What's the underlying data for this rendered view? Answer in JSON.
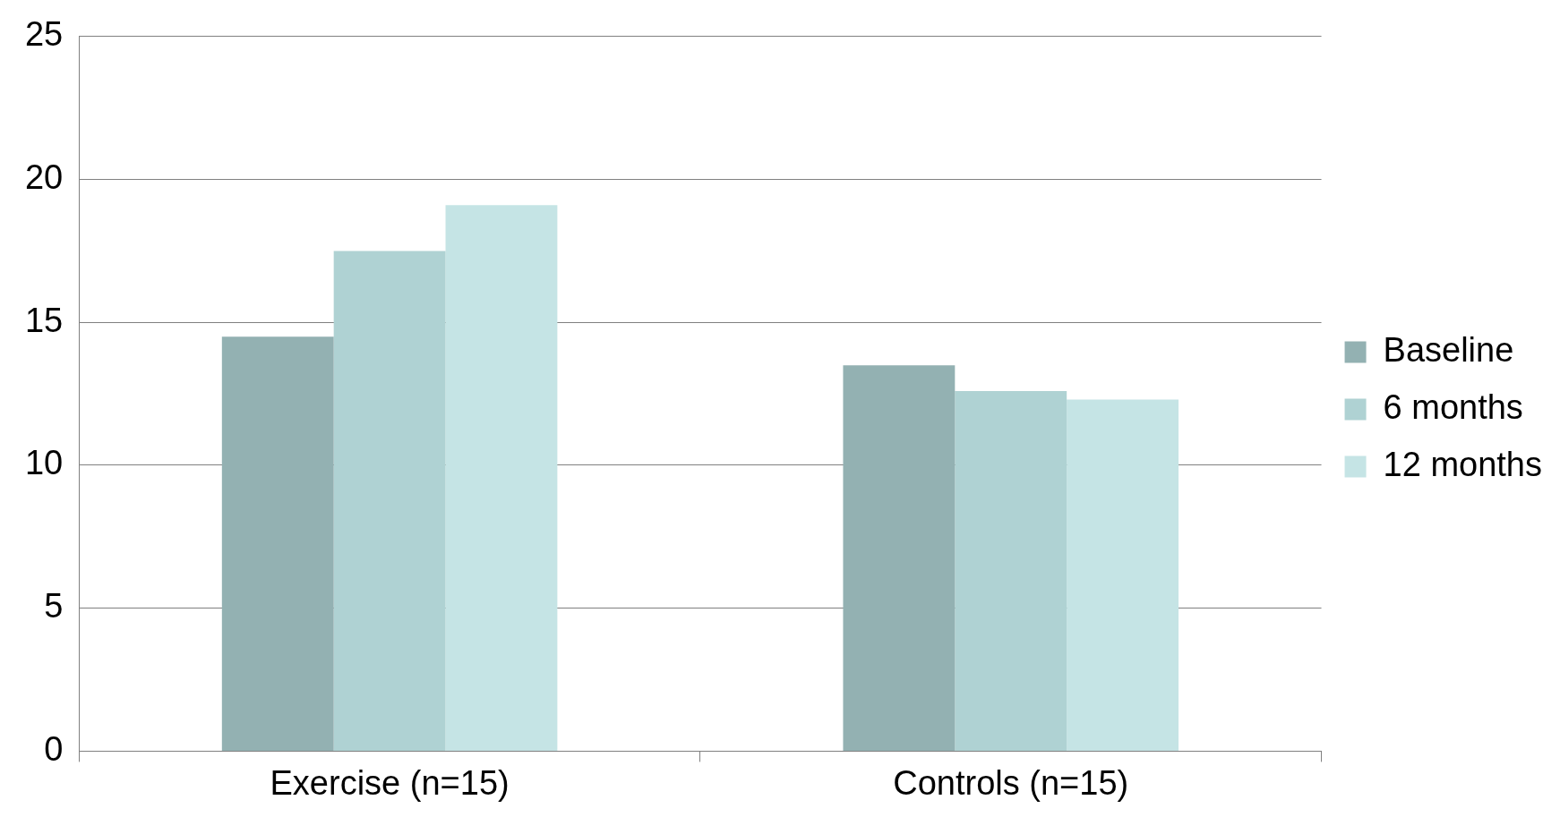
{
  "chart_data": {
    "type": "bar",
    "categories": [
      "Exercise (n=15)",
      "Controls (n=15)"
    ],
    "series": [
      {
        "name": "Baseline",
        "color": "#93b1b2",
        "values": [
          14.5,
          13.5
        ]
      },
      {
        "name": "6 months",
        "color": "#afd2d3",
        "values": [
          17.5,
          12.6
        ]
      },
      {
        "name": "12 months",
        "color": "#c5e4e5",
        "values": [
          19.1,
          12.3
        ]
      }
    ],
    "ylim": [
      0,
      25
    ],
    "yticks": [
      0,
      5,
      10,
      15,
      20,
      25
    ],
    "grid": "y",
    "legend": "right"
  }
}
